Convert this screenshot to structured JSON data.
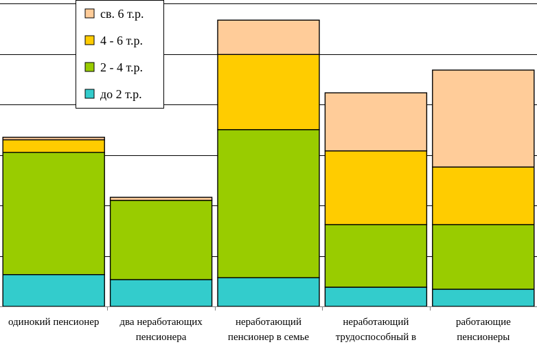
{
  "chart_data": {
    "type": "bar",
    "stacked": true,
    "categories": [
      [
        "одинокий пенсионер"
      ],
      [
        "два неработающих",
        "пенсионера"
      ],
      [
        "неработающий",
        "пенсионер в семье"
      ],
      [
        "неработающий",
        "трудоспособный в"
      ],
      [
        "работающие",
        "пенсионеры"
      ]
    ],
    "series": [
      {
        "name": "до 2 т.р.",
        "color": "#33CCCC",
        "values": [
          6.3,
          5.3,
          5.7,
          3.8,
          3.4
        ]
      },
      {
        "name": "2 - 4 т.р.",
        "color": "#99CC00",
        "values": [
          24.2,
          15.7,
          29.3,
          12.4,
          12.8
        ]
      },
      {
        "name": "4 - 6 т.р.",
        "color": "#FFCC00",
        "values": [
          2.5,
          0,
          14.9,
          14.6,
          11.4
        ]
      },
      {
        "name": "св. 6 т.р.",
        "color": "#FFCC99",
        "values": [
          0.5,
          0.6,
          6.8,
          11.5,
          19.2
        ]
      }
    ],
    "ylim": [
      0,
      60
    ],
    "grid": true,
    "legend": "top-left",
    "title": "",
    "xlabel": "",
    "ylabel": ""
  }
}
